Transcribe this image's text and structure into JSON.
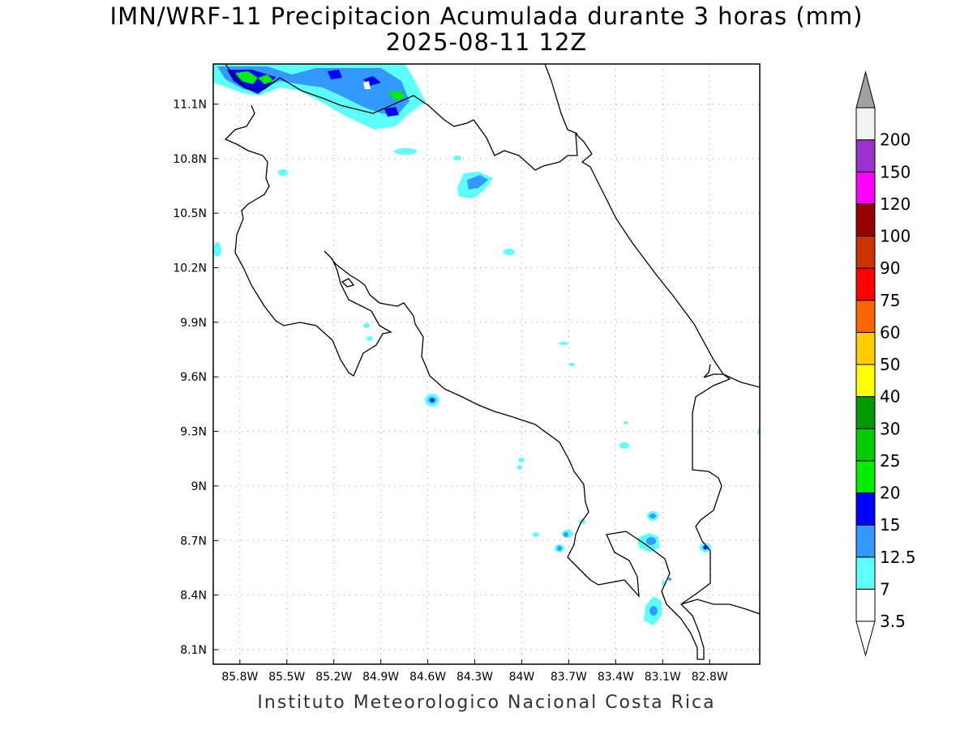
{
  "title": {
    "line1": "IMN/WRF-11 Precipitacion Acumulada durante 3 horas (mm)",
    "line2": "2025-08-11 12Z"
  },
  "footer": "Instituto Meteorologico Nacional Costa Rica",
  "map": {
    "lon_range": [
      -85.97,
      -82.48
    ],
    "lat_range": [
      8.02,
      11.32
    ],
    "x_ticks": [
      "85.8W",
      "85.5W",
      "85.2W",
      "84.9W",
      "84.6W",
      "84.3W",
      "84W",
      "83.7W",
      "83.4W",
      "83.1W",
      "82.8W"
    ],
    "y_ticks": [
      "11.1N",
      "10.8N",
      "10.5N",
      "10.2N",
      "9.9N",
      "9.6N",
      "9.3N",
      "9N",
      "8.7N",
      "8.4N",
      "8.1N"
    ],
    "grid": "dotted"
  },
  "colorbar": {
    "labels": [
      "3.5",
      "7",
      "12.5",
      "15",
      "20",
      "25",
      "30",
      "40",
      "50",
      "60",
      "75",
      "90",
      "100",
      "120",
      "150",
      "200"
    ],
    "colors": [
      "#ffffff",
      "#5cfffa",
      "#3399ff",
      "#0000ff",
      "#00ee00",
      "#00cc00",
      "#009900",
      "#ffff00",
      "#ffcc00",
      "#ff6600",
      "#ff0000",
      "#cc3300",
      "#990000",
      "#ff00ff",
      "#9933cc",
      "#f2f2f2"
    ],
    "over_color": "#a0a0a0",
    "under_color": "#ffffff"
  }
}
